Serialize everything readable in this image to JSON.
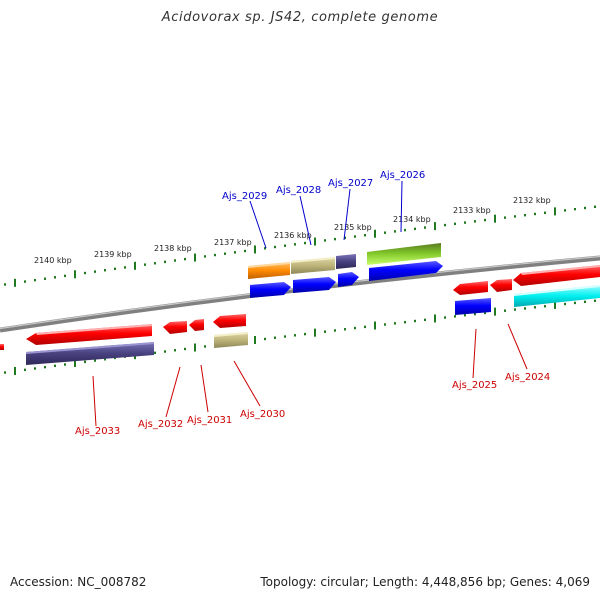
{
  "title": "Acidovorax sp. JS42, complete genome",
  "footer": {
    "accession": "Accession: NC_008782",
    "summary": "Topology: circular; Length: 4,448,856 bp; Genes: 4,069"
  },
  "colors": {
    "backbone": "#7a7a7a",
    "tick": "#1f7a1f",
    "forward_label": "#0000cc",
    "reverse_label": "#cc0000"
  },
  "kbp_labels": [
    "2140 kbp",
    "2139 kbp",
    "2138 kbp",
    "2137 kbp",
    "2136 kbp",
    "2135 kbp",
    "2134 kbp",
    "2133 kbp",
    "2132 kbp"
  ],
  "gene_labels": {
    "forward": [
      "Ajs_2029",
      "Ajs_2028",
      "Ajs_2027",
      "Ajs_2026"
    ],
    "reverse": [
      "Ajs_2033",
      "Ajs_2032",
      "Ajs_2031",
      "Ajs_2030",
      "Ajs_2025",
      "Ajs_2024"
    ]
  },
  "features": [
    {
      "name": "Ajs_2033",
      "strand": "-",
      "color": "red"
    },
    {
      "name": "Ajs_2033-cog",
      "strand": "-",
      "color": "slate-blue"
    },
    {
      "name": "Ajs_2032",
      "strand": "-",
      "color": "red"
    },
    {
      "name": "Ajs_2031",
      "strand": "-",
      "color": "red"
    },
    {
      "name": "Ajs_2030",
      "strand": "-",
      "color": "red"
    },
    {
      "name": "Ajs_2030-cog",
      "strand": "-",
      "color": "khaki"
    },
    {
      "name": "Ajs_2029",
      "strand": "+",
      "color": "orange"
    },
    {
      "name": "Ajs_2029-cds",
      "strand": "+",
      "color": "blue"
    },
    {
      "name": "Ajs_2028",
      "strand": "+",
      "color": "khaki"
    },
    {
      "name": "Ajs_2028-cds",
      "strand": "+",
      "color": "blue"
    },
    {
      "name": "Ajs_2027",
      "strand": "+",
      "color": "slate-blue"
    },
    {
      "name": "Ajs_2027-cds",
      "strand": "+",
      "color": "blue"
    },
    {
      "name": "Ajs_2026",
      "strand": "+",
      "color": "olive-green"
    },
    {
      "name": "Ajs_2026-cds",
      "strand": "+",
      "color": "blue"
    },
    {
      "name": "Ajs_2025",
      "strand": "-",
      "color": "red"
    },
    {
      "name": "Ajs_2025-cog",
      "strand": "-",
      "color": "blue"
    },
    {
      "name": "Ajs_2024",
      "strand": "-",
      "color": "red"
    },
    {
      "name": "Ajs_2024-cog",
      "strand": "-",
      "color": "cyan"
    }
  ]
}
